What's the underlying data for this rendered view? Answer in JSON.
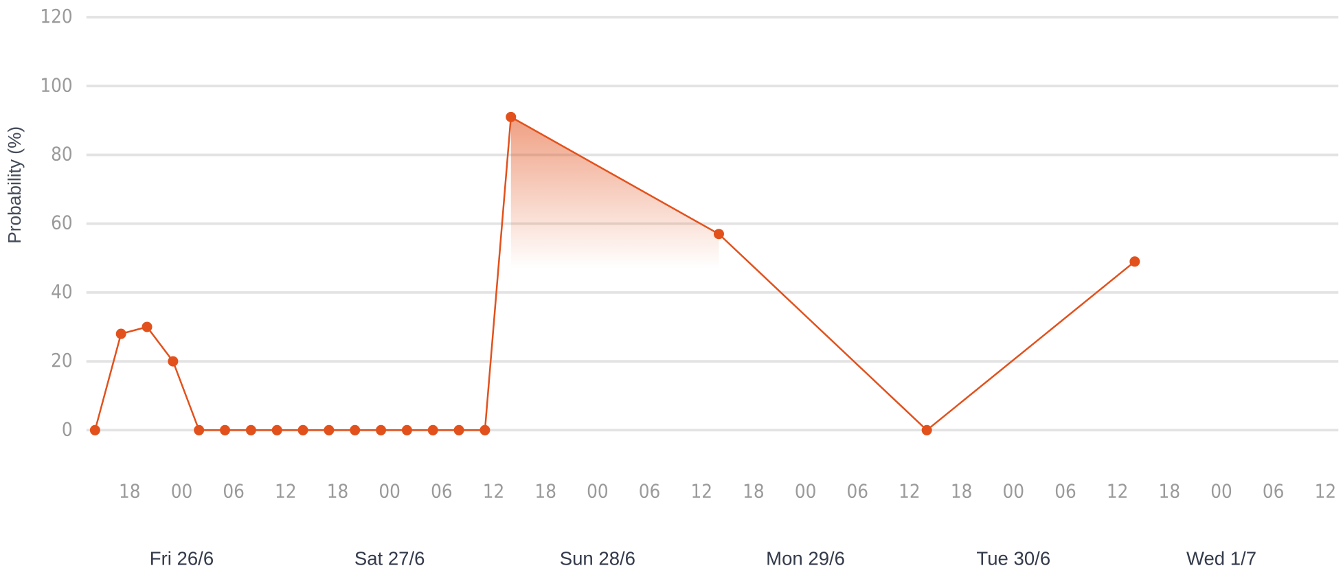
{
  "chart_data": {
    "type": "line",
    "y_axis_label": "Probability (%)",
    "x": [
      -10,
      -7,
      -4,
      -1,
      2,
      5,
      8,
      11,
      14,
      17,
      20,
      23,
      26,
      29,
      32,
      35,
      38,
      62,
      86,
      110
    ],
    "values": [
      0,
      28,
      30,
      20,
      0,
      0,
      0,
      0,
      0,
      0,
      0,
      0,
      0,
      0,
      0,
      0,
      91,
      57,
      0,
      49
    ],
    "color": "#e2511c",
    "xlim": [
      -11,
      133.5
    ],
    "xticks": [
      {
        "value": -6,
        "label": "18"
      },
      {
        "value": 0,
        "label": "00"
      },
      {
        "value": 6,
        "label": "06"
      },
      12,
      18,
      {
        "value": 24,
        "label": "00"
      },
      {
        "value": 30,
        "label": "06"
      },
      {
        "value": 36,
        "label": "12"
      },
      {
        "value": 42,
        "label": "18"
      },
      {
        "value": 48,
        "label": "00"
      },
      {
        "value": 54,
        "label": "06"
      },
      {
        "value": 60,
        "label": "12"
      },
      {
        "value": 66,
        "label": "18"
      },
      {
        "value": 72,
        "label": "00"
      },
      {
        "value": 78,
        "label": "06"
      },
      {
        "value": 84,
        "label": "12"
      },
      {
        "value": 90,
        "label": "18"
      },
      {
        "value": 96,
        "label": "00"
      },
      {
        "value": 102,
        "label": "06"
      },
      {
        "value": 108,
        "label": "12"
      },
      {
        "value": 114,
        "label": "18"
      },
      {
        "value": 120,
        "label": "00"
      },
      {
        "value": 126,
        "label": "06"
      },
      {
        "value": 132,
        "label": "12"
      }
    ],
    "day_labels": [
      {
        "value": 0,
        "label": "Fri 26/6"
      },
      {
        "value": 24,
        "label": "Sat 27/6"
      },
      {
        "value": 48,
        "label": "Sun 28/6"
      },
      {
        "value": 72,
        "label": "Mon 29/6"
      },
      {
        "value": 96,
        "label": "Tue 30/6"
      },
      {
        "value": 120,
        "label": "Wed 1/7"
      }
    ],
    "ylim": [
      0,
      120
    ],
    "yticks": [
      0,
      20,
      40,
      60,
      80,
      100,
      120
    ],
    "grid": true
  }
}
